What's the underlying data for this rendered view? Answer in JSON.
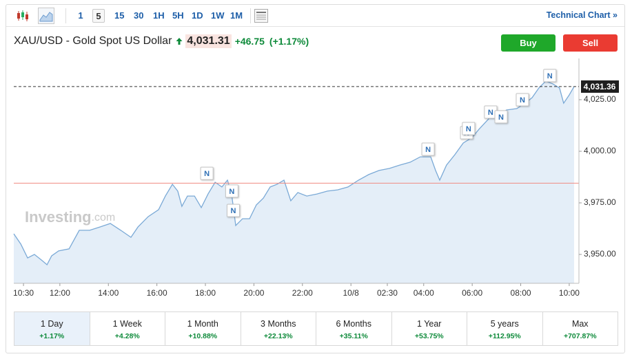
{
  "toolbar": {
    "intervals": [
      "1",
      "5",
      "15",
      "30",
      "1H",
      "5H",
      "1D",
      "1W",
      "1M"
    ],
    "selected_index": 1,
    "technical_chart": "Technical Chart »"
  },
  "header": {
    "symbol": "XAU/USD - Gold Spot US Dollar",
    "price": "4,031.31",
    "change": "+46.75",
    "change_pct": "(+1.17%)",
    "buy": "Buy",
    "sell": "Sell"
  },
  "watermark": [
    "Investing",
    ".com"
  ],
  "chart_data": {
    "type": "line",
    "color": "#7aa9d6",
    "area": true,
    "area_color": "#e4eef8",
    "x": [
      10.1,
      10.39,
      10.67,
      10.95,
      11.24,
      11.47,
      11.66,
      11.95,
      12.38,
      12.8,
      13.23,
      13.65,
      14.08,
      14.51,
      14.93,
      15.22,
      15.64,
      16.07,
      16.35,
      16.64,
      16.86,
      17.03,
      17.26,
      17.55,
      17.83,
      18.11,
      18.4,
      18.68,
      18.91,
      19.08,
      19.25,
      19.53,
      19.82,
      20.1,
      20.39,
      20.67,
      20.95,
      21.24,
      21.52,
      21.81,
      22.18,
      22.6,
      23.03,
      23.45,
      23.88,
      24.31,
      24.73,
      25.16,
      25.59,
      26.01,
      26.44,
      26.86,
      27.29,
      27.49,
      27.66,
      27.94,
      28.28,
      28.63,
      29.0,
      29.28,
      29.7,
      30.05,
      30.41,
      30.84,
      31.18,
      31.47,
      31.75,
      32.03,
      32.32,
      32.6,
      32.77,
      33.0,
      33.2
    ],
    "values": [
      3960.0,
      3955.0,
      3948.3,
      3950.0,
      3947.3,
      3945.0,
      3949.3,
      3951.7,
      3952.7,
      3961.7,
      3961.7,
      3963.3,
      3965.0,
      3961.7,
      3958.3,
      3963.3,
      3968.3,
      3971.7,
      3978.3,
      3984.0,
      3980.7,
      3973.3,
      3978.3,
      3978.3,
      3972.7,
      3979.3,
      3985.0,
      3982.7,
      3986.0,
      3979.3,
      3964.0,
      3967.3,
      3967.3,
      3974.0,
      3977.3,
      3982.7,
      3984.0,
      3986.0,
      3976.0,
      3980.0,
      3978.3,
      3979.3,
      3980.7,
      3981.3,
      3982.7,
      3986.0,
      3988.7,
      3990.7,
      3991.7,
      3993.3,
      3994.7,
      3997.3,
      3997.3,
      3990.7,
      3986.0,
      3993.3,
      3998.3,
      4004.0,
      4006.7,
      4010.7,
      4016.0,
      4016.0,
      4020.0,
      4020.7,
      4023.3,
      4026.0,
      4030.7,
      4034.0,
      4032.7,
      4030.7,
      4023.3,
      4027.3,
      4031.36
    ],
    "xlim": [
      10.1,
      33.4
    ],
    "ylim": [
      3936,
      4045
    ],
    "xticks": [
      {
        "value": 10.5,
        "label": "10:30"
      },
      {
        "value": 12,
        "label": "12:00"
      },
      {
        "value": 14,
        "label": "14:00"
      },
      {
        "value": 16,
        "label": "16:00"
      },
      {
        "value": 18,
        "label": "18:00"
      },
      {
        "value": 20,
        "label": "20:00"
      },
      {
        "value": 22,
        "label": "22:00"
      },
      {
        "value": 24,
        "label": "10/8"
      },
      {
        "value": 25.5,
        "label": "02:30"
      },
      {
        "value": 27,
        "label": "04:00"
      },
      {
        "value": 29,
        "label": "06:00"
      },
      {
        "value": 31,
        "label": "08:00"
      },
      {
        "value": 33,
        "label": "10:00"
      }
    ],
    "yticks": [
      {
        "value": 3950,
        "label": "3,950.00"
      },
      {
        "value": 3975,
        "label": "3,975.00"
      },
      {
        "value": 4000,
        "label": "4,000.00"
      },
      {
        "value": 4025,
        "label": "4,025.00"
      }
    ],
    "last_price": {
      "value": 4031.36,
      "label": "4,031.36"
    },
    "prev_close": {
      "value": 3984.56,
      "color": "#f08a80"
    },
    "news_markers": [
      {
        "x": 18.06,
        "value": 3989.3,
        "label": "N"
      },
      {
        "x": 19.09,
        "value": 3980.7,
        "label": "N"
      },
      {
        "x": 19.15,
        "value": 3971.3,
        "label": "N"
      },
      {
        "x": 27.18,
        "value": 4001.0,
        "label": "N"
      },
      {
        "x": 28.77,
        "value": 4009.0,
        "label": "N"
      },
      {
        "x": 28.85,
        "value": 4011.0,
        "label": "N"
      },
      {
        "x": 29.76,
        "value": 4019.0,
        "label": "N"
      },
      {
        "x": 30.19,
        "value": 4016.7,
        "label": "N"
      },
      {
        "x": 31.07,
        "value": 4025.0,
        "label": "N"
      },
      {
        "x": 32.2,
        "value": 4036.7,
        "label": "N"
      }
    ]
  },
  "periods": [
    {
      "label": "1 Day",
      "change": "+1.17%"
    },
    {
      "label": "1 Week",
      "change": "+4.28%"
    },
    {
      "label": "1 Month",
      "change": "+10.88%"
    },
    {
      "label": "3 Months",
      "change": "+22.13%"
    },
    {
      "label": "6 Months",
      "change": "+35.11%"
    },
    {
      "label": "1 Year",
      "change": "+53.75%"
    },
    {
      "label": "5 years",
      "change": "+112.95%"
    },
    {
      "label": "Max",
      "change": "+707.87%"
    }
  ],
  "selected_period": 0
}
